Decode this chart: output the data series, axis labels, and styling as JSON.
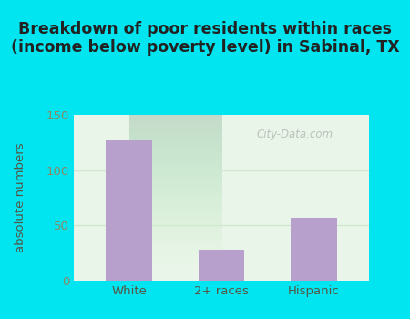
{
  "categories": [
    "White",
    "2+ races",
    "Hispanic"
  ],
  "values": [
    127,
    28,
    57
  ],
  "bar_color": "#b8a0cc",
  "title": "Breakdown of poor residents within races\n(income below poverty level) in Sabinal, TX",
  "ylabel": "absolute numbers",
  "ylim": [
    0,
    150
  ],
  "yticks": [
    0,
    50,
    100,
    150
  ],
  "outer_bg": "#00e5f0",
  "plot_bg": "#e8f5e8",
  "title_fontsize": 12.5,
  "label_fontsize": 9.5,
  "tick_color": "#888866",
  "watermark": "City-Data.com",
  "grid_color": "#d0e8d0",
  "bar_width": 0.5,
  "title_color": "#222222"
}
